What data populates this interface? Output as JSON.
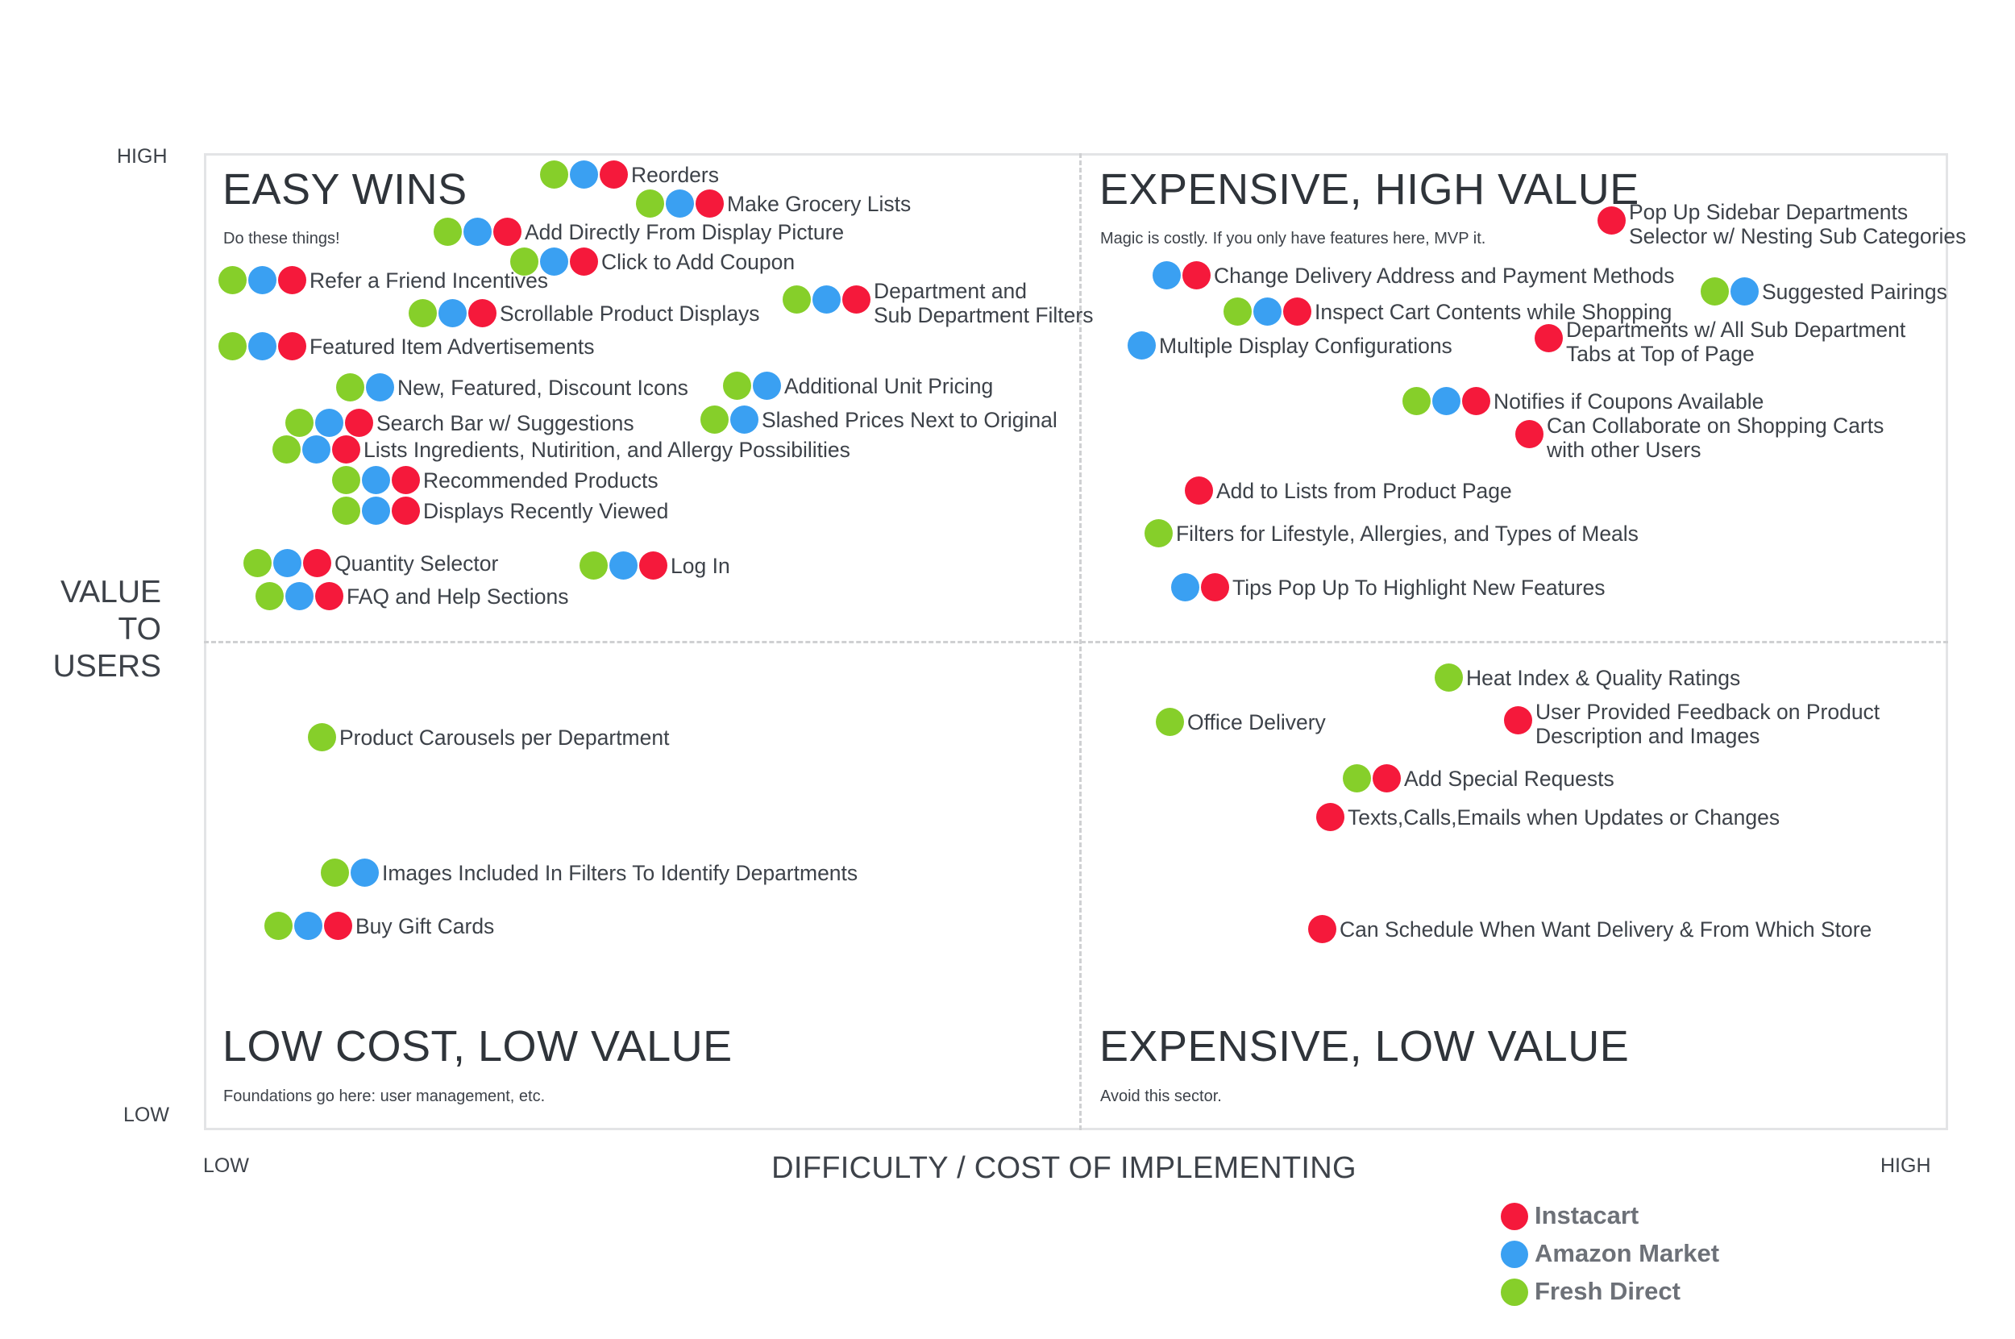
{
  "colors": {
    "instacart": "#f5193b",
    "amazon": "#3aa0f2",
    "freshdirect": "#86cf2a"
  },
  "axes": {
    "y_high": "HIGH",
    "y_low": "LOW",
    "y_title": [
      "VALUE",
      "TO",
      "USERS"
    ],
    "x_low": "LOW",
    "x_high": "HIGH",
    "x_title": "DIFFICULTY / COST OF IMPLEMENTING"
  },
  "quadrants": {
    "top_left": {
      "title": "EASY WINS",
      "subtitle": "Do these things!"
    },
    "top_right": {
      "title": "EXPENSIVE, HIGH VALUE",
      "subtitle": "Magic is costly. If you only have features here, MVP it."
    },
    "bottom_left": {
      "title": "LOW COST, LOW VALUE",
      "subtitle": "Foundations go here: user management, etc."
    },
    "bottom_right": {
      "title": "EXPENSIVE, LOW VALUE",
      "subtitle": "Avoid this sector."
    }
  },
  "legend": [
    {
      "key": "instacart",
      "label": "Instacart"
    },
    {
      "key": "amazon",
      "label": "Amazon Market"
    },
    {
      "key": "freshdirect",
      "label": "Fresh Direct"
    }
  ],
  "features": [
    {
      "lines": [
        "Reorders"
      ],
      "brands": [
        "freshdirect",
        "amazon",
        "instacart"
      ]
    },
    {
      "lines": [
        "Make Grocery Lists"
      ],
      "brands": [
        "freshdirect",
        "amazon",
        "instacart"
      ]
    },
    {
      "lines": [
        "Add Directly From Display Picture"
      ],
      "brands": [
        "freshdirect",
        "amazon",
        "instacart"
      ]
    },
    {
      "lines": [
        "Click to Add Coupon"
      ],
      "brands": [
        "freshdirect",
        "amazon",
        "instacart"
      ]
    },
    {
      "lines": [
        "Refer a Friend Incentives"
      ],
      "brands": [
        "freshdirect",
        "amazon",
        "instacart"
      ]
    },
    {
      "lines": [
        "Scrollable Product Displays"
      ],
      "brands": [
        "freshdirect",
        "amazon",
        "instacart"
      ]
    },
    {
      "lines": [
        "Department and",
        "Sub Department Filters"
      ],
      "brands": [
        "freshdirect",
        "amazon",
        "instacart"
      ]
    },
    {
      "lines": [
        "Featured Item Advertisements"
      ],
      "brands": [
        "freshdirect",
        "amazon",
        "instacart"
      ]
    },
    {
      "lines": [
        "New, Featured, Discount Icons"
      ],
      "brands": [
        "freshdirect",
        "amazon"
      ]
    },
    {
      "lines": [
        "Additional Unit Pricing"
      ],
      "brands": [
        "freshdirect",
        "amazon"
      ]
    },
    {
      "lines": [
        "Search Bar w/ Suggestions"
      ],
      "brands": [
        "freshdirect",
        "amazon",
        "instacart"
      ]
    },
    {
      "lines": [
        "Slashed Prices Next to Original"
      ],
      "brands": [
        "freshdirect",
        "amazon"
      ]
    },
    {
      "lines": [
        "Lists Ingredients, Nutirition, and Allergy Possibilities"
      ],
      "brands": [
        "freshdirect",
        "amazon",
        "instacart"
      ]
    },
    {
      "lines": [
        "Recommended Products"
      ],
      "brands": [
        "freshdirect",
        "amazon",
        "instacart"
      ]
    },
    {
      "lines": [
        "Displays Recently Viewed"
      ],
      "brands": [
        "freshdirect",
        "amazon",
        "instacart"
      ]
    },
    {
      "lines": [
        "Quantity Selector"
      ],
      "brands": [
        "freshdirect",
        "amazon",
        "instacart"
      ]
    },
    {
      "lines": [
        "Log In"
      ],
      "brands": [
        "freshdirect",
        "amazon",
        "instacart"
      ]
    },
    {
      "lines": [
        "FAQ and Help Sections"
      ],
      "brands": [
        "freshdirect",
        "amazon",
        "instacart"
      ]
    },
    {
      "lines": [
        "Pop Up Sidebar Departments",
        "Selector w/ Nesting Sub Categories"
      ],
      "brands": [
        "instacart"
      ]
    },
    {
      "lines": [
        "Change Delivery Address and Payment Methods"
      ],
      "brands": [
        "amazon",
        "instacart"
      ]
    },
    {
      "lines": [
        "Suggested Pairings"
      ],
      "brands": [
        "freshdirect",
        "amazon"
      ]
    },
    {
      "lines": [
        "Inspect Cart Contents while Shopping"
      ],
      "brands": [
        "freshdirect",
        "amazon",
        "instacart"
      ]
    },
    {
      "lines": [
        "Multiple Display Configurations"
      ],
      "brands": [
        "amazon"
      ]
    },
    {
      "lines": [
        "Departments w/ All Sub Department",
        "Tabs at Top of Page"
      ],
      "brands": [
        "instacart"
      ]
    },
    {
      "lines": [
        "Notifies if Coupons Available"
      ],
      "brands": [
        "freshdirect",
        "amazon",
        "instacart"
      ]
    },
    {
      "lines": [
        "Can Collaborate on Shopping Carts",
        "with other Users"
      ],
      "brands": [
        "instacart"
      ]
    },
    {
      "lines": [
        "Add to Lists from Product Page"
      ],
      "brands": [
        "instacart"
      ]
    },
    {
      "lines": [
        "Filters for Lifestyle, Allergies, and Types of Meals"
      ],
      "brands": [
        "freshdirect"
      ]
    },
    {
      "lines": [
        "Tips Pop Up To Highlight New Features"
      ],
      "brands": [
        "amazon",
        "instacart"
      ]
    },
    {
      "lines": [
        "Product Carousels per Department"
      ],
      "brands": [
        "freshdirect"
      ]
    },
    {
      "lines": [
        "Images Included In Filters To Identify Departments"
      ],
      "brands": [
        "freshdirect",
        "amazon"
      ]
    },
    {
      "lines": [
        "Buy Gift Cards"
      ],
      "brands": [
        "freshdirect",
        "amazon",
        "instacart"
      ]
    },
    {
      "lines": [
        "Heat Index & Quality Ratings"
      ],
      "brands": [
        "freshdirect"
      ]
    },
    {
      "lines": [
        "Office Delivery"
      ],
      "brands": [
        "freshdirect"
      ]
    },
    {
      "lines": [
        "User Provided Feedback on Product",
        "Description and Images"
      ],
      "brands": [
        "instacart"
      ]
    },
    {
      "lines": [
        "Add Special Requests"
      ],
      "brands": [
        "freshdirect",
        "instacart"
      ]
    },
    {
      "lines": [
        "Texts,Calls,Emails when Updates or Changes"
      ],
      "brands": [
        "instacart"
      ]
    },
    {
      "lines": [
        "Can Schedule When Want Delivery & From Which Store"
      ],
      "brands": [
        "instacart"
      ]
    }
  ]
}
